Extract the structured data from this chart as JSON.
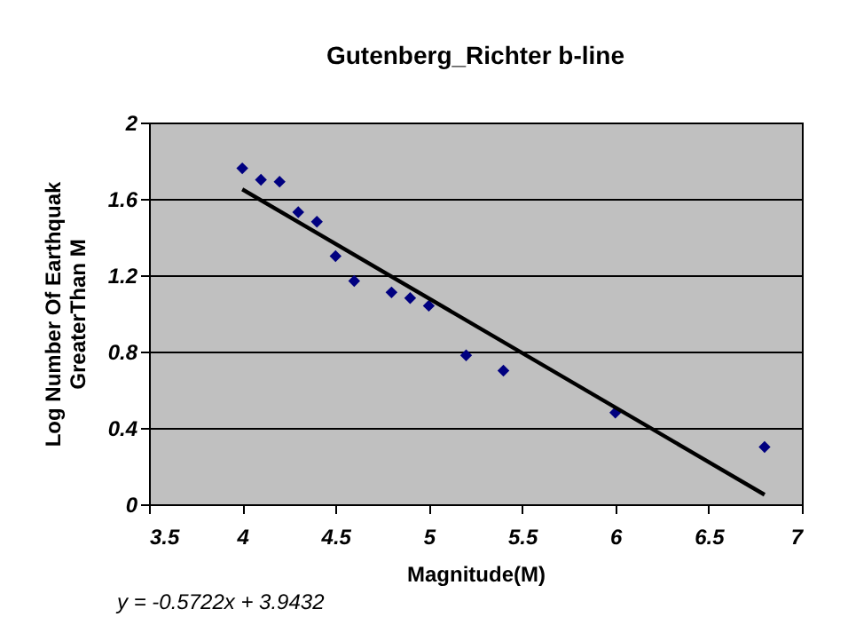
{
  "chart_data": {
    "type": "scatter",
    "title": "Gutenberg_Richter b-line",
    "xlabel": "Magnitude(M)",
    "ylabel": "Log Number Of Earthquak GreaterThan M",
    "series": [
      {
        "color": "#000080",
        "marker": "diamond",
        "x": [
          4.0,
          4.1,
          4.2,
          4.3,
          4.4,
          4.5,
          4.6,
          4.8,
          4.9,
          5.0,
          5.2,
          5.4,
          6.0,
          6.8
        ],
        "values": [
          1.76,
          1.7,
          1.69,
          1.53,
          1.48,
          1.3,
          1.17,
          1.11,
          1.08,
          1.04,
          0.78,
          0.7,
          0.48,
          0.3
        ]
      },
      {
        "type": "line",
        "color": "#000000",
        "x": [
          4.0,
          6.8
        ],
        "values": [
          1.65,
          0.05
        ]
      }
    ],
    "xlim": [
      3.5,
      7
    ],
    "xticks": [
      3.5,
      4,
      4.5,
      5,
      5.5,
      6,
      6.5,
      7
    ],
    "ylim": [
      0,
      2
    ],
    "yticks": [
      0,
      0.4,
      0.8,
      1.2,
      1.6,
      2
    ],
    "grid": "y",
    "annotations": [
      "y = -0.5722x + 3.9432"
    ]
  }
}
